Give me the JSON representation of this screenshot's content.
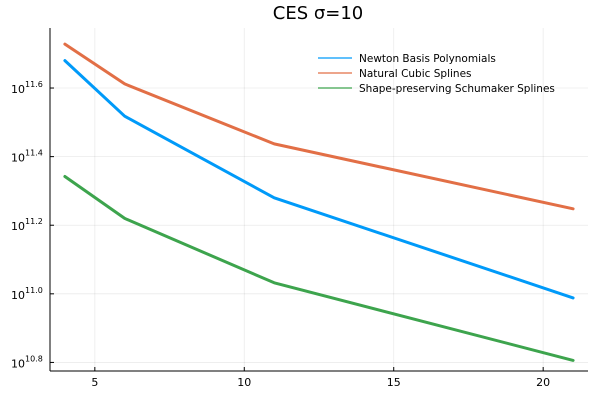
{
  "chart_data": {
    "type": "line",
    "title": "CES σ=10",
    "xlabel": "",
    "ylabel": "",
    "yscale": "log10",
    "xlim": [
      3.5,
      21.5
    ],
    "ylim_exponent": [
      10.775,
      11.775
    ],
    "x_ticks": [
      5,
      10,
      15,
      20
    ],
    "y_ticks_exponent": [
      10.8,
      11.0,
      11.2,
      11.4,
      11.6
    ],
    "y_tick_base": "10",
    "y_tick_exponents_text": [
      "10.8",
      "11.0",
      "11.2",
      "11.4",
      "11.6"
    ],
    "grid": true,
    "legend_position": "top-right",
    "series": [
      {
        "name": "Newton Basis Polynomials",
        "color": "#009AF9",
        "x": [
          4,
          6,
          11,
          21
        ],
        "y_exponent": [
          11.68,
          11.518,
          11.28,
          10.988
        ]
      },
      {
        "name": "Natural Cubic Splines",
        "color": "#E26F46",
        "x": [
          4,
          6,
          11,
          21
        ],
        "y_exponent": [
          11.728,
          11.612,
          11.437,
          11.248
        ]
      },
      {
        "name": "Shape-preserving Schumaker Splines",
        "color": "#3DA44D",
        "x": [
          4,
          6,
          11,
          21
        ],
        "y_exponent": [
          11.342,
          11.22,
          11.032,
          10.806
        ]
      }
    ]
  }
}
